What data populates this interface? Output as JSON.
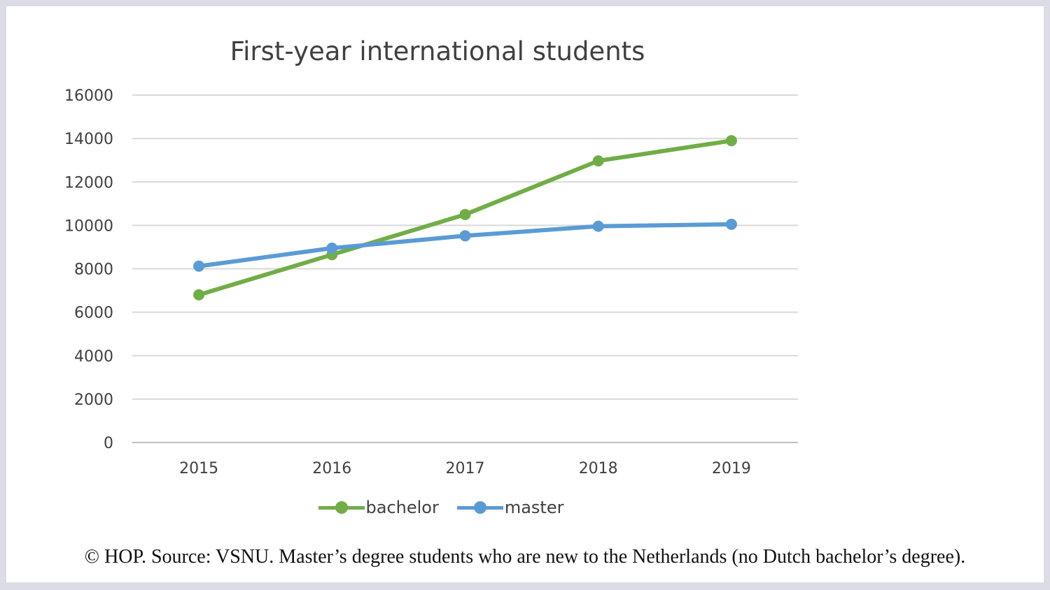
{
  "chart_data": {
    "type": "line",
    "title": "First-year international students",
    "xlabel": "",
    "ylabel": "",
    "categories": [
      "2015",
      "2016",
      "2017",
      "2018",
      "2019"
    ],
    "ylim": [
      0,
      16000
    ],
    "yticks": [
      0,
      2000,
      4000,
      6000,
      8000,
      10000,
      12000,
      14000,
      16000
    ],
    "grid": true,
    "legend_position": "bottom",
    "series": [
      {
        "name": "bachelor",
        "color": "#70ad47",
        "values": [
          6800,
          8650,
          10500,
          12970,
          13900
        ]
      },
      {
        "name": "master",
        "color": "#5b9bd5",
        "values": [
          8120,
          8950,
          9520,
          9960,
          10050
        ]
      }
    ]
  },
  "caption": "© HOP. Source: VSNU. Master’s degree students who are new to the Netherlands (no Dutch bachelor’s degree)."
}
